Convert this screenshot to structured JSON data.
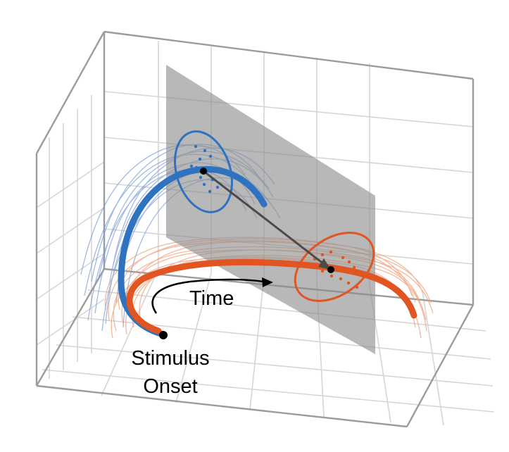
{
  "labels": {
    "time": "Time",
    "stimulus_line1": "Stimulus",
    "stimulus_line2": "Onset"
  },
  "colors": {
    "blue": "#2e72c0",
    "blue_light": "#7c9dd6",
    "orange": "#e05522",
    "orange_light": "#f0a27d",
    "grid": "#d6d6d6",
    "axis": "#9c9c9c",
    "plane": "#8d8d8d",
    "arrow": "#4a4a4a"
  }
}
